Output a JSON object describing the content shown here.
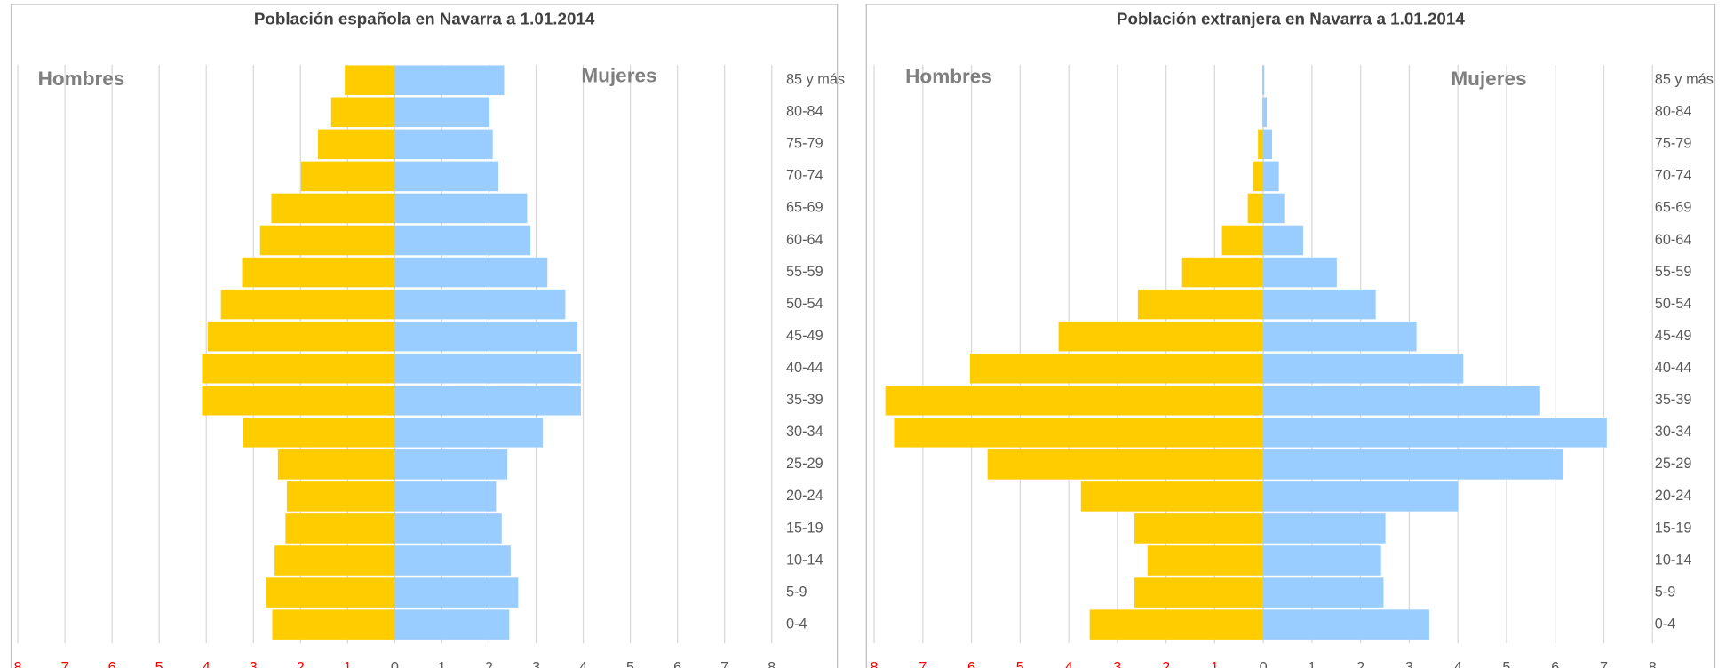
{
  "chart_data": [
    {
      "type": "bar",
      "orientation": "horizontal",
      "title": "Población española en Navarra a 1.01.2014",
      "categories": [
        "0-4",
        "5-9",
        "10-14",
        "15-19",
        "20-24",
        "25-29",
        "30-34",
        "35-39",
        "40-44",
        "45-49",
        "50-54",
        "55-59",
        "60-64",
        "65-69",
        "70-74",
        "75-79",
        "80-84",
        "85 y más"
      ],
      "series": [
        {
          "name": "Hombres",
          "color": "#ffcc00",
          "values": [
            -2.6,
            -2.74,
            -2.55,
            -2.32,
            -2.29,
            -2.48,
            -3.22,
            -4.09,
            -4.09,
            -3.97,
            -3.69,
            -3.24,
            -2.86,
            -2.62,
            -1.99,
            -1.63,
            -1.35,
            -1.06
          ]
        },
        {
          "name": "Mujeres",
          "color": "#99ccff",
          "values": [
            2.43,
            2.62,
            2.46,
            2.27,
            2.15,
            2.39,
            3.14,
            3.95,
            3.95,
            3.88,
            3.62,
            3.24,
            2.88,
            2.81,
            2.2,
            2.08,
            2.01,
            2.32
          ]
        }
      ],
      "xlim": [
        -8,
        8
      ],
      "xticks": [
        {
          "value": -8,
          "label": "8"
        },
        {
          "value": -7,
          "label": "7"
        },
        {
          "value": -6,
          "label": "6"
        },
        {
          "value": -5,
          "label": "5"
        },
        {
          "value": -4,
          "label": "4"
        },
        {
          "value": -3,
          "label": "3"
        },
        {
          "value": -2,
          "label": "2"
        },
        {
          "value": -1,
          "label": "1"
        },
        0,
        1,
        2,
        3,
        4,
        5,
        6,
        7,
        8
      ],
      "negative_tick_color": "#ff0000",
      "grid": true
    },
    {
      "type": "bar",
      "orientation": "horizontal",
      "title": "Población extranjera en Navarra a 1.01.2014",
      "categories": [
        "0-4",
        "5-9",
        "10-14",
        "15-19",
        "20-24",
        "25-29",
        "30-34",
        "35-39",
        "40-44",
        "45-49",
        "50-54",
        "55-59",
        "60-64",
        "65-69",
        "70-74",
        "75-79",
        "80-84",
        "85 y más"
      ],
      "series": [
        {
          "name": "Hombres",
          "color": "#ffcc00",
          "values": [
            -3.57,
            -2.65,
            -2.38,
            -2.65,
            -3.75,
            -5.67,
            -7.59,
            -7.77,
            -6.03,
            -4.21,
            -2.58,
            -1.67,
            -0.85,
            -0.32,
            -0.21,
            -0.11,
            -0.02,
            -0.02
          ]
        },
        {
          "name": "Mujeres",
          "color": "#99ccff",
          "values": [
            3.41,
            2.47,
            2.42,
            2.51,
            4.0,
            6.17,
            7.06,
            5.69,
            4.11,
            3.15,
            2.31,
            1.51,
            0.82,
            0.43,
            0.32,
            0.18,
            0.07,
            0.02
          ]
        }
      ],
      "xlim": [
        -8,
        8
      ],
      "xticks": [
        {
          "value": -8,
          "label": "8"
        },
        {
          "value": -7,
          "label": "7"
        },
        {
          "value": -6,
          "label": "6"
        },
        {
          "value": -5,
          "label": "5"
        },
        {
          "value": -4,
          "label": "4"
        },
        {
          "value": -3,
          "label": "3"
        },
        {
          "value": -2,
          "label": "2"
        },
        {
          "value": -1,
          "label": "1"
        },
        0,
        1,
        2,
        3,
        4,
        5,
        6,
        7,
        8
      ],
      "negative_tick_color": "#ff0000",
      "grid": true
    }
  ]
}
